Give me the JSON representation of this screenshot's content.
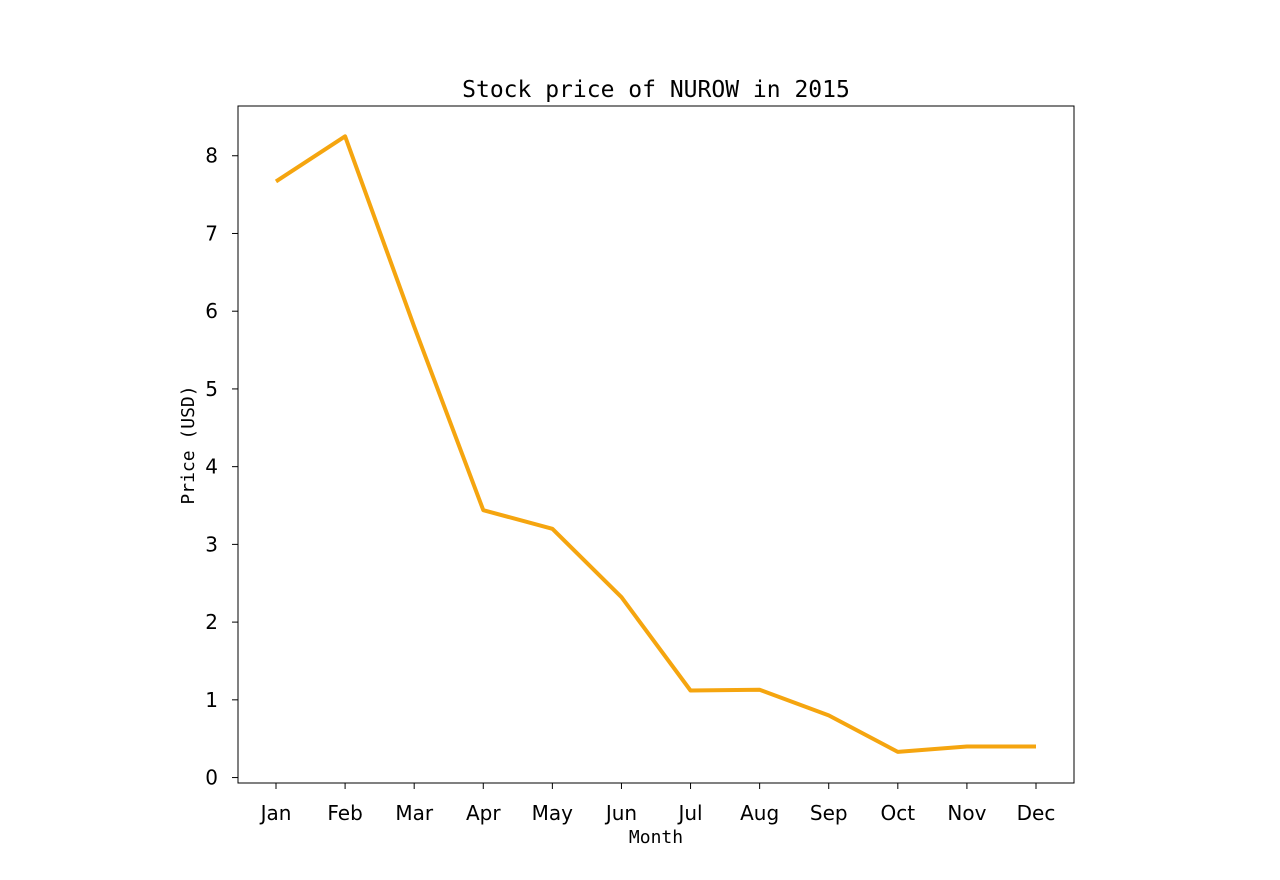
{
  "chart_data": {
    "type": "line",
    "title": "Stock price of NUROW in 2015",
    "xlabel": "Month",
    "ylabel": "Price (USD)",
    "categories": [
      "Jan",
      "Feb",
      "Mar",
      "Apr",
      "May",
      "Jun",
      "Jul",
      "Aug",
      "Sep",
      "Oct",
      "Nov",
      "Dec"
    ],
    "series": [
      {
        "values": [
          7.67,
          8.25,
          5.8,
          3.44,
          3.2,
          2.32,
          1.12,
          1.13,
          0.8,
          0.33,
          0.4,
          0.4
        ],
        "color": "#f5a50f"
      }
    ],
    "yticks": [
      0,
      1,
      2,
      3,
      4,
      5,
      6,
      7,
      8
    ],
    "ylim": [
      -0.07,
      8.64
    ],
    "grid": false,
    "legend": "none"
  }
}
